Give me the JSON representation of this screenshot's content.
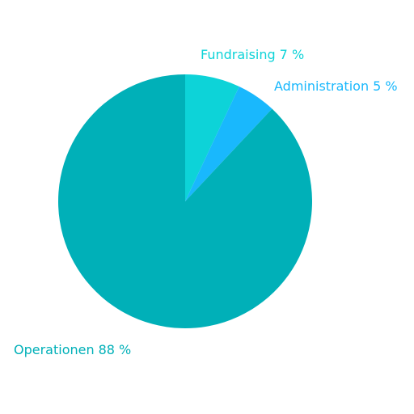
{
  "chart_data": {
    "type": "pie",
    "categories": [
      "Fundraising",
      "Administration",
      "Operationen"
    ],
    "values": [
      7,
      5,
      88
    ],
    "value_labels": [
      "7 %",
      "5 %",
      "88 %"
    ],
    "colors": [
      "#0dd3d8",
      "#19b8fd",
      "#00b0b8"
    ]
  }
}
